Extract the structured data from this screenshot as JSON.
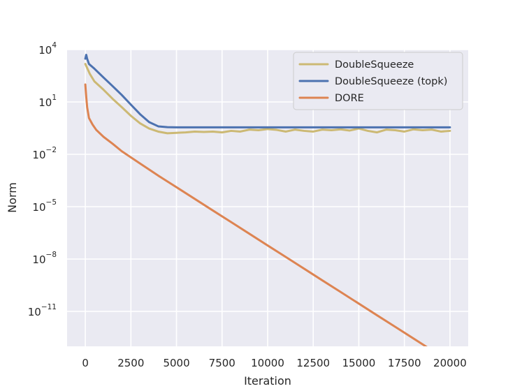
{
  "chart_data": {
    "type": "line",
    "xlabel": "Iteration",
    "ylabel": "Norm",
    "yscale": "log",
    "xlim": [
      -1000,
      21000
    ],
    "ylim": [
      1e-13,
      10000.0
    ],
    "xticks": [
      0,
      2500,
      5000,
      7500,
      10000,
      12500,
      15000,
      17500,
      20000
    ],
    "xtick_labels": [
      "0",
      "2500",
      "5000",
      "7500",
      "10000",
      "12500",
      "15000",
      "17500",
      "20000"
    ],
    "yticks": [
      {
        "value": 10000.0,
        "base": "10",
        "exp": "4"
      },
      {
        "value": 10.0,
        "base": "10",
        "exp": "1"
      },
      {
        "value": 0.01,
        "base": "10",
        "exp": "−2"
      },
      {
        "value": 1e-05,
        "base": "10",
        "exp": "−5"
      },
      {
        "value": 1e-08,
        "base": "10",
        "exp": "−8"
      },
      {
        "value": 1e-11,
        "base": "10",
        "exp": "−11"
      }
    ],
    "grid": true,
    "legend_position": "top-right",
    "series": [
      {
        "name": "DoubleSqueeze",
        "color": "#ccb974",
        "x": [
          0,
          250,
          500,
          1000,
          1500,
          2000,
          2500,
          3000,
          3500,
          4000,
          4500,
          5000,
          5500,
          6000,
          6500,
          7000,
          7500,
          8000,
          8500,
          9000,
          9500,
          10000,
          10500,
          11000,
          11500,
          12000,
          12500,
          13000,
          13500,
          14000,
          14500,
          15000,
          15500,
          16000,
          16500,
          17000,
          17500,
          18000,
          18500,
          19000,
          19500,
          20000
        ],
        "y": [
          1500,
          400,
          150,
          50,
          15,
          5,
          1.6,
          0.6,
          0.3,
          0.2,
          0.16,
          0.17,
          0.18,
          0.2,
          0.19,
          0.2,
          0.18,
          0.22,
          0.2,
          0.26,
          0.24,
          0.28,
          0.25,
          0.2,
          0.26,
          0.22,
          0.2,
          0.26,
          0.24,
          0.27,
          0.23,
          0.3,
          0.22,
          0.18,
          0.26,
          0.24,
          0.2,
          0.27,
          0.24,
          0.26,
          0.2,
          0.22
        ]
      },
      {
        "name": "DoubleSqueeze (topk)",
        "color": "#4c72b0",
        "x": [
          0,
          50,
          100,
          200,
          500,
          1000,
          1500,
          2000,
          2500,
          3000,
          3500,
          4000,
          4500,
          5000,
          6000,
          8000,
          10000,
          12000,
          14000,
          16000,
          18000,
          20000
        ],
        "y": [
          3000,
          5000,
          3000,
          1500,
          800,
          250,
          80,
          25,
          7,
          2,
          0.7,
          0.4,
          0.36,
          0.35,
          0.35,
          0.35,
          0.35,
          0.35,
          0.35,
          0.35,
          0.35,
          0.35
        ]
      },
      {
        "name": "DORE",
        "color": "#dd8452",
        "x": [
          0,
          50,
          100,
          200,
          400,
          600,
          1000,
          1500,
          2000,
          3000,
          4000,
          5000,
          6000,
          7000,
          8000,
          9000,
          10000,
          11000,
          12000,
          13000,
          14000,
          15000,
          16000,
          17000,
          18000,
          19000,
          20000
        ],
        "y": [
          100,
          20,
          5,
          1.2,
          0.5,
          0.25,
          0.1,
          0.04,
          0.015,
          0.003,
          0.0006,
          0.00013,
          2.8e-05,
          6e-06,
          1.3e-06,
          2.8e-07,
          6e-08,
          1.3e-08,
          2.8e-09,
          6e-10,
          1.3e-10,
          2.8e-11,
          6e-12,
          1.3e-12,
          2.8e-13,
          6e-14,
          1.3e-14
        ]
      }
    ]
  }
}
